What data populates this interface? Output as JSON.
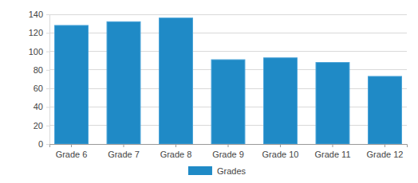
{
  "chart_data": {
    "type": "bar",
    "categories": [
      "Grade 6",
      "Grade 7",
      "Grade 8",
      "Grade 9",
      "Grade 10",
      "Grade 11",
      "Grade 12"
    ],
    "series": [
      {
        "name": "Grades",
        "color": "#1f8ac6",
        "values": [
          128,
          132,
          136,
          91,
          93,
          88,
          73
        ]
      }
    ],
    "ylim": [
      0,
      140
    ],
    "yticks": [
      0,
      20,
      40,
      60,
      80,
      100,
      120,
      140
    ],
    "grid": true,
    "legend": "bottom"
  }
}
